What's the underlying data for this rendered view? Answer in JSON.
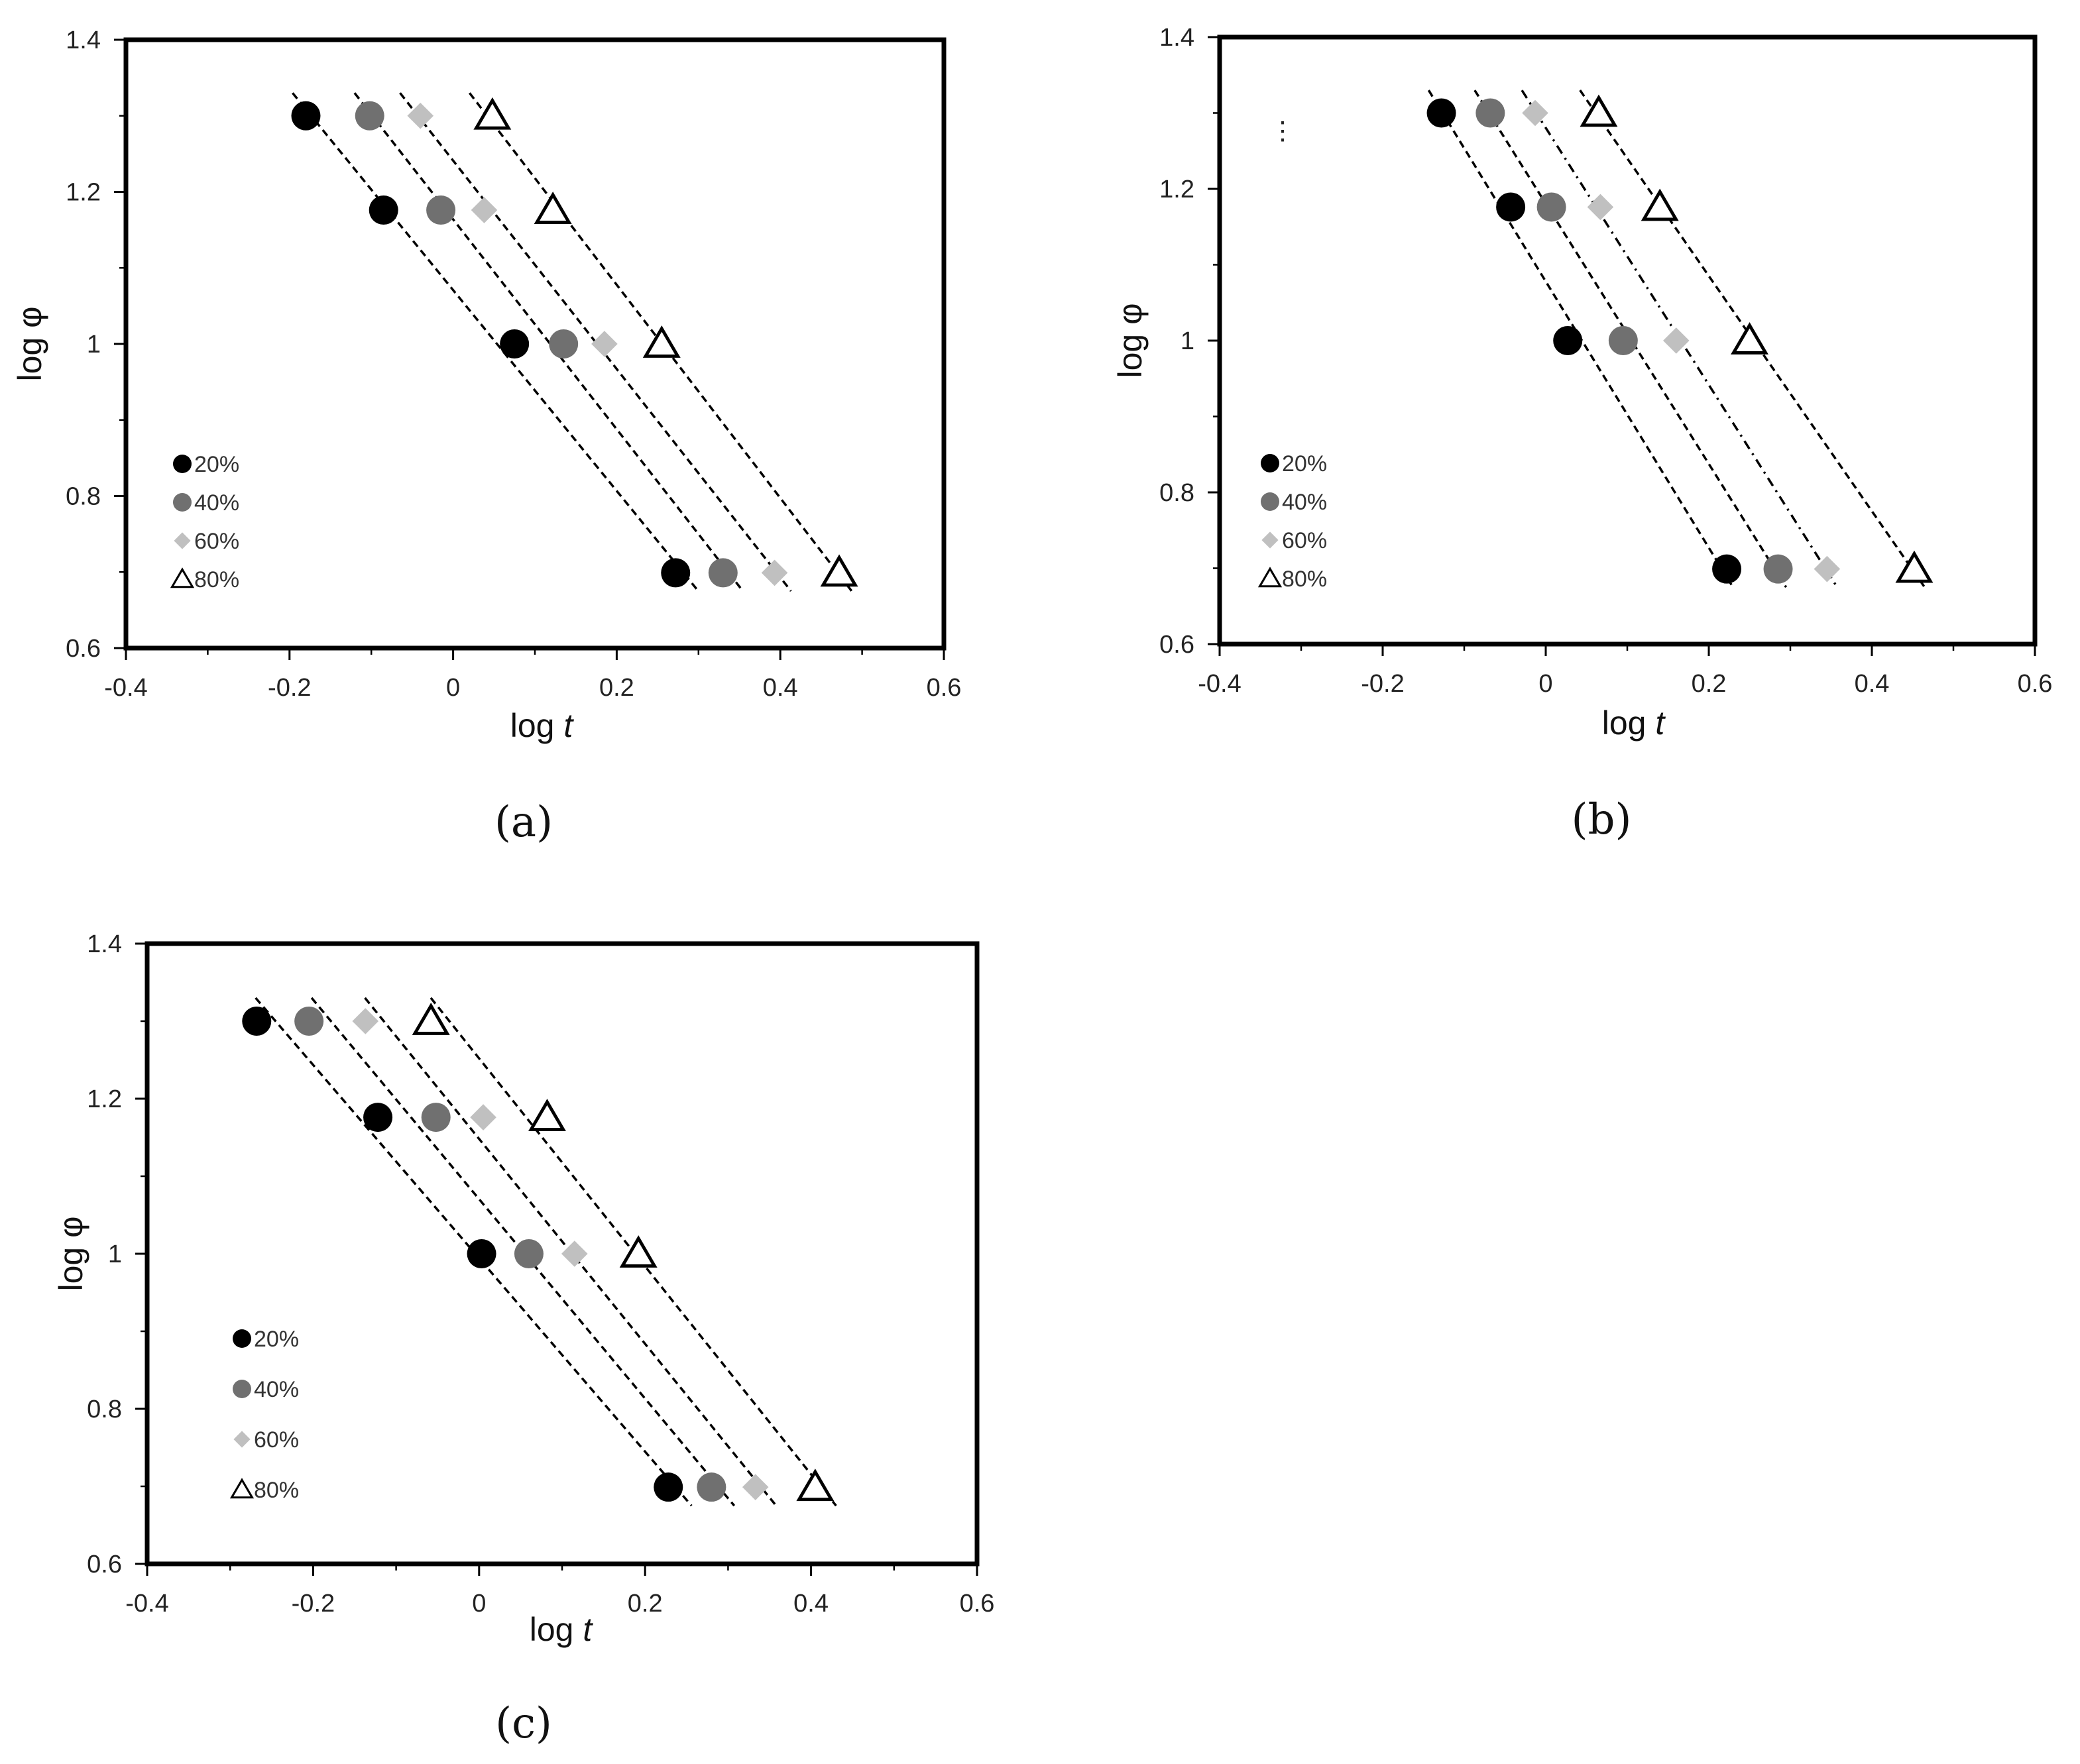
{
  "chart_data": [
    {
      "type": "scatter",
      "panel_label": "(a)",
      "xlabel_prefix": "log ",
      "xlabel_var": "t",
      "ylabel": "log φ",
      "xlim": [
        -0.4,
        0.6
      ],
      "ylim": [
        0.6,
        1.4
      ],
      "xticks": [
        "-0.4",
        "-0.2",
        "0",
        "0.2",
        "0.4",
        "0.6"
      ],
      "yticks": [
        "0.6",
        "0.8",
        "1",
        "1.2",
        "1.4"
      ],
      "legend_position": "bottom-left",
      "series": [
        {
          "name": "20%",
          "marker": "circle",
          "color": "#000000",
          "trendline": "dashed",
          "x": [
            -0.18,
            -0.085,
            0.075,
            0.272
          ],
          "y": [
            1.3,
            1.176,
            1.0,
            0.699
          ]
        },
        {
          "name": "40%",
          "marker": "circle",
          "color": "#707070",
          "trendline": "dashed",
          "x": [
            -0.102,
            -0.015,
            0.135,
            0.33
          ],
          "y": [
            1.3,
            1.176,
            1.0,
            0.699
          ]
        },
        {
          "name": "60%",
          "marker": "diamond",
          "color": "#c0c0c0",
          "trendline": "dashed",
          "x": [
            -0.04,
            0.038,
            0.185,
            0.393
          ],
          "y": [
            1.3,
            1.176,
            1.0,
            0.699
          ]
        },
        {
          "name": "80%",
          "marker": "triangle",
          "color": "#000000",
          "trendline": "dashed",
          "x": [
            0.048,
            0.122,
            0.255,
            0.472
          ],
          "y": [
            1.3,
            1.176,
            1.0,
            0.699
          ]
        }
      ]
    },
    {
      "type": "scatter",
      "panel_label": "(b)",
      "xlabel_prefix": "log ",
      "xlabel_var": "t",
      "ylabel": "log φ",
      "xlim": [
        -0.4,
        0.6
      ],
      "ylim": [
        0.6,
        1.4
      ],
      "xticks": [
        "-0.4",
        "-0.2",
        "0",
        "0.2",
        "0.4",
        "0.6"
      ],
      "yticks": [
        "0.6",
        "0.8",
        "1",
        "1.2",
        "1.4"
      ],
      "legend_position": "bottom-left",
      "annotation": "⋮",
      "series": [
        {
          "name": "20%",
          "marker": "circle",
          "color": "#000000",
          "trendline": "dashed",
          "x": [
            -0.128,
            -0.043,
            0.027,
            0.222
          ],
          "y": [
            1.3,
            1.176,
            1.0,
            0.699
          ]
        },
        {
          "name": "40%",
          "marker": "circle",
          "color": "#707070",
          "trendline": "dashed",
          "x": [
            -0.068,
            0.007,
            0.095,
            0.285
          ],
          "y": [
            1.3,
            1.176,
            1.0,
            0.699
          ]
        },
        {
          "name": "60%",
          "marker": "diamond",
          "color": "#c0c0c0",
          "trendline": "dashdot",
          "x": [
            -0.013,
            0.067,
            0.16,
            0.345
          ],
          "y": [
            1.3,
            1.176,
            1.0,
            0.699
          ]
        },
        {
          "name": "80%",
          "marker": "triangle",
          "color": "#000000",
          "trendline": "dashed",
          "x": [
            0.065,
            0.14,
            0.25,
            0.452
          ],
          "y": [
            1.3,
            1.176,
            1.0,
            0.699
          ]
        }
      ]
    },
    {
      "type": "scatter",
      "panel_label": "(c)",
      "xlabel_prefix": "log ",
      "xlabel_var": "t",
      "ylabel": "log φ",
      "xlim": [
        -0.4,
        0.6
      ],
      "ylim": [
        0.6,
        1.4
      ],
      "xticks": [
        "-0.4",
        "-0.2",
        "0",
        "0.2",
        "0.4",
        "0.6"
      ],
      "yticks": [
        "0.6",
        "0.8",
        "1",
        "1.2",
        "1.4"
      ],
      "legend_position": "bottom-left",
      "series": [
        {
          "name": "20%",
          "marker": "circle",
          "color": "#000000",
          "trendline": "dashed",
          "x": [
            -0.268,
            -0.122,
            0.003,
            0.228
          ],
          "y": [
            1.3,
            1.176,
            1.0,
            0.699
          ]
        },
        {
          "name": "40%",
          "marker": "circle",
          "color": "#707070",
          "trendline": "dashed",
          "x": [
            -0.205,
            -0.052,
            0.06,
            0.28
          ],
          "y": [
            1.3,
            1.176,
            1.0,
            0.699
          ]
        },
        {
          "name": "60%",
          "marker": "diamond",
          "color": "#c0c0c0",
          "trendline": "dashed",
          "x": [
            -0.137,
            0.005,
            0.115,
            0.333
          ],
          "y": [
            1.3,
            1.176,
            1.0,
            0.699
          ]
        },
        {
          "name": "80%",
          "marker": "triangle",
          "color": "#000000",
          "trendline": "dashed",
          "x": [
            -0.058,
            0.082,
            0.192,
            0.405
          ],
          "y": [
            1.3,
            1.176,
            1.0,
            0.699
          ]
        }
      ]
    }
  ]
}
